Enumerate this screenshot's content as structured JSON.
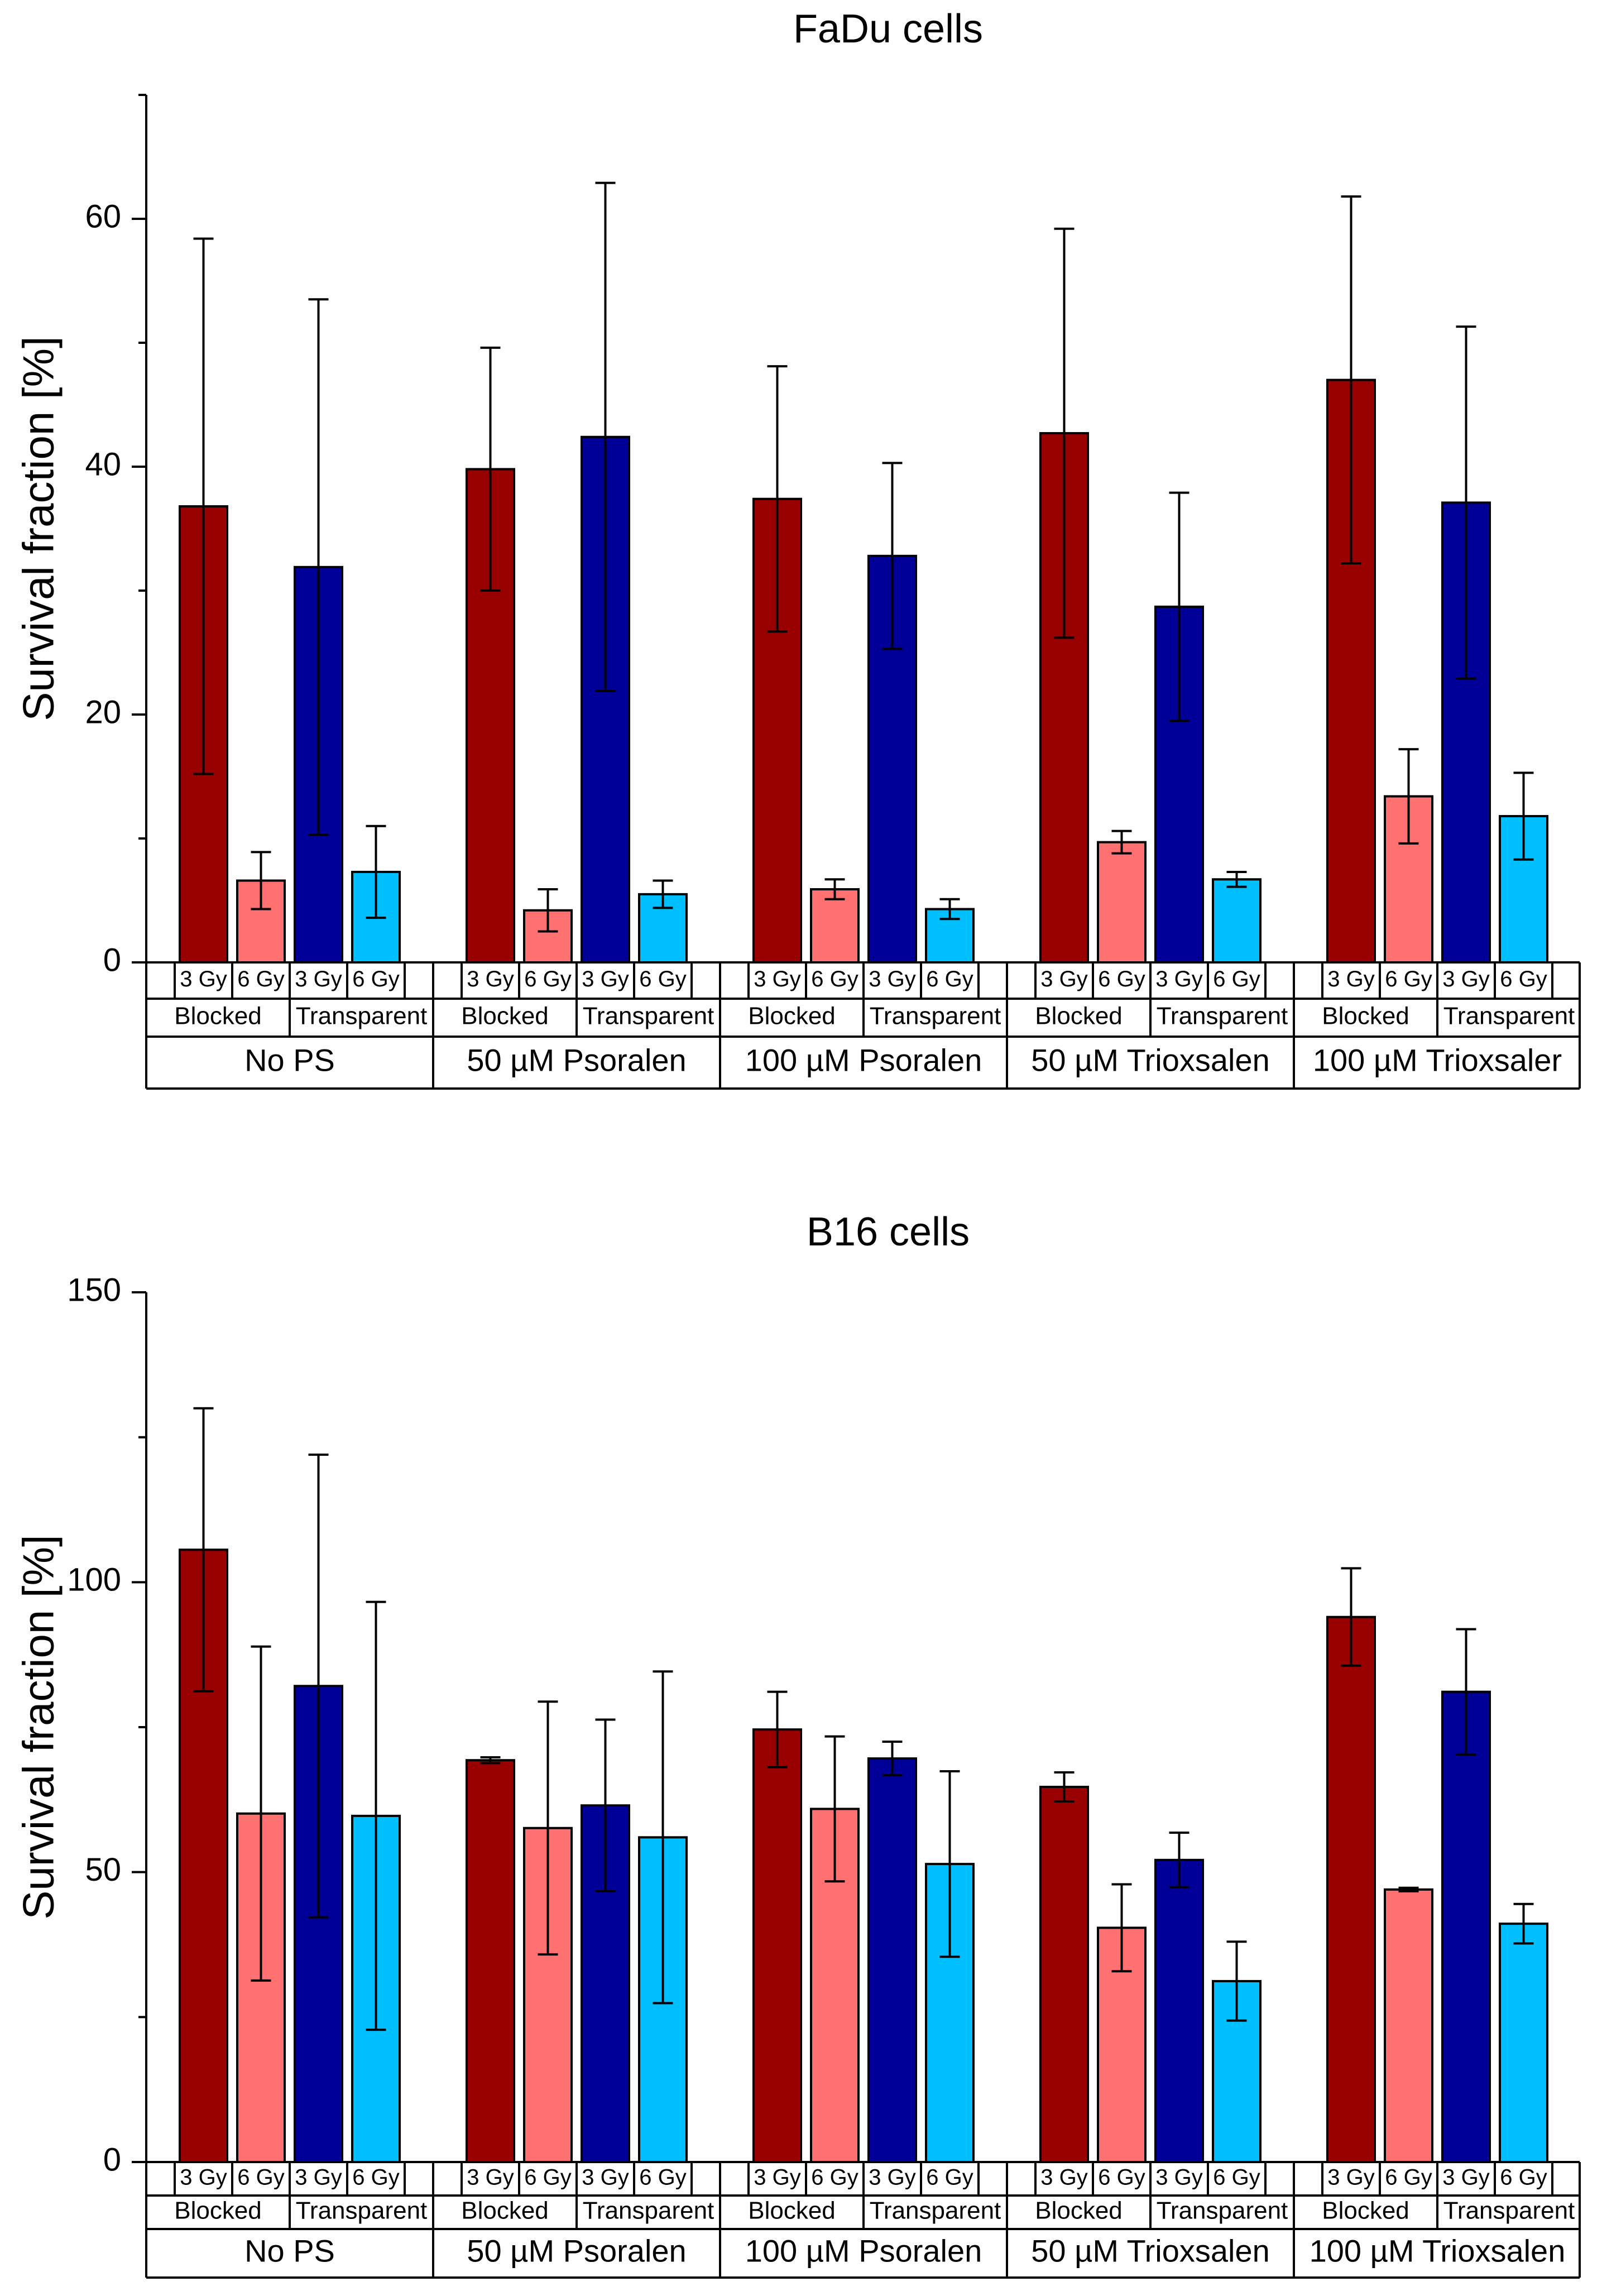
{
  "chart_data": [
    {
      "type": "bar",
      "title": "FaDu cells",
      "ylabel": "Survival fraction [%]",
      "xlabel": "",
      "ylim": [
        0,
        70
      ],
      "yticks": [
        0,
        20,
        40,
        60
      ],
      "grid": false,
      "groups": [
        "No PS",
        "50 µM Psoralen",
        "100 µM Psoralen",
        "50 µM Trioxsalen",
        "100 µM Trioxsaler"
      ],
      "subgroups": [
        "Blocked",
        "Transparent"
      ],
      "doses": [
        "3 Gy",
        "6 Gy"
      ],
      "series": [
        {
          "name": "Blocked 3 Gy",
          "color": "#990000",
          "values": [
            36.8,
            39.8,
            37.4,
            42.7,
            47.0
          ],
          "errors": [
            21.6,
            9.8,
            10.7,
            16.5,
            14.8
          ]
        },
        {
          "name": "Blocked 6 Gy",
          "color": "#ff7070",
          "values": [
            6.6,
            4.2,
            5.9,
            9.7,
            13.4
          ],
          "errors": [
            2.3,
            1.7,
            0.8,
            0.9,
            3.8
          ]
        },
        {
          "name": "Transparent 3 Gy",
          "color": "#000099",
          "values": [
            31.9,
            42.4,
            32.8,
            28.7,
            37.1
          ],
          "errors": [
            21.6,
            20.5,
            7.5,
            9.2,
            14.2
          ]
        },
        {
          "name": "Transparent 6 Gy",
          "color": "#00bfff",
          "values": [
            7.3,
            5.5,
            4.3,
            6.7,
            11.8
          ],
          "errors": [
            3.7,
            1.1,
            0.8,
            0.6,
            3.5
          ]
        }
      ]
    },
    {
      "type": "bar",
      "title": "B16 cells",
      "ylabel": "Survival fraction [%]",
      "xlabel": "",
      "ylim": [
        0,
        150
      ],
      "yticks": [
        0,
        50,
        100,
        150
      ],
      "grid": false,
      "groups": [
        "No PS",
        "50 µM Psoralen",
        "100 µM Psoralen",
        "50 µM Trioxsalen",
        "100 µM Trioxsalen"
      ],
      "subgroups": [
        "Blocked",
        "Transparent"
      ],
      "doses": [
        "3 Gy",
        "6 Gy"
      ],
      "series": [
        {
          "name": "Blocked 3 Gy",
          "color": "#990000",
          "values": [
            105.6,
            69.3,
            74.6,
            64.7,
            94.0
          ],
          "errors": [
            24.4,
            0.5,
            6.5,
            2.5,
            8.4
          ]
        },
        {
          "name": "Blocked 6 Gy",
          "color": "#ff7070",
          "values": [
            60.1,
            57.6,
            60.9,
            40.4,
            47.0
          ],
          "errors": [
            28.8,
            21.8,
            12.5,
            7.5,
            0.3
          ]
        },
        {
          "name": "Transparent 3 Gy",
          "color": "#000099",
          "values": [
            82.1,
            61.5,
            69.6,
            52.1,
            81.1
          ],
          "errors": [
            39.9,
            14.8,
            2.9,
            4.7,
            10.8
          ]
        },
        {
          "name": "Transparent 6 Gy",
          "color": "#00bfff",
          "values": [
            59.7,
            56.0,
            51.4,
            31.2,
            41.1
          ],
          "errors": [
            36.9,
            28.6,
            16.0,
            6.8,
            3.4
          ]
        }
      ]
    }
  ]
}
